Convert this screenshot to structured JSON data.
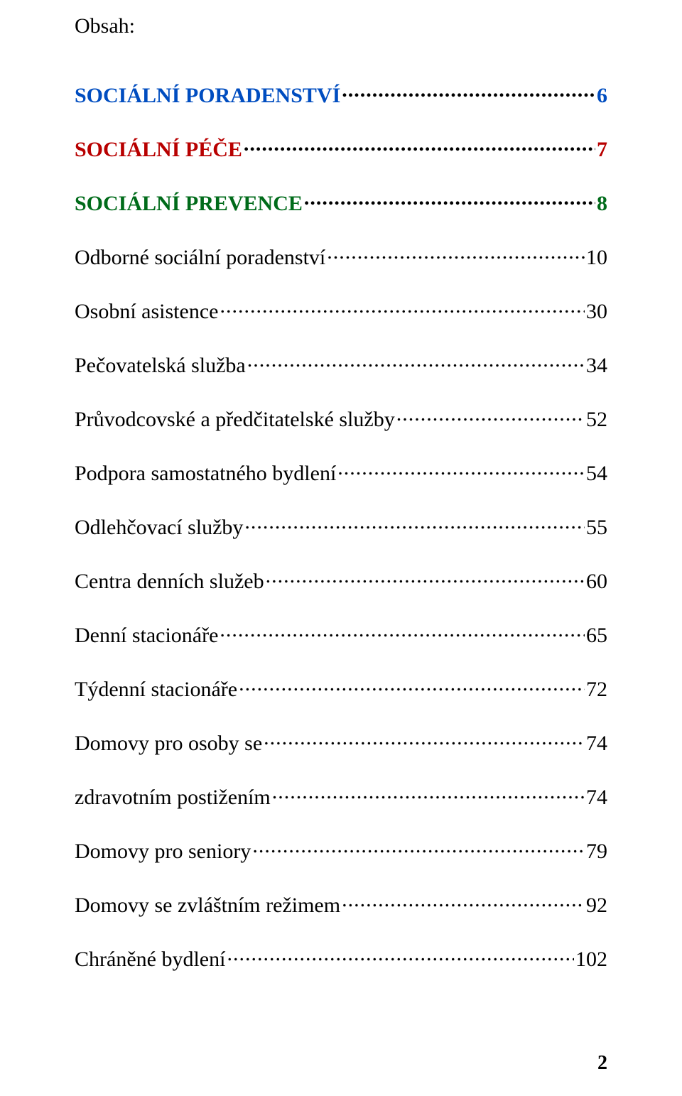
{
  "heading": "Obsah:",
  "colors": {
    "section_blue": "#004dc0",
    "section_red": "#b80000",
    "section_green": "#006b1a",
    "body_text": "#000000",
    "leader": "#000000",
    "background": "#ffffff"
  },
  "fonts": {
    "family": "Times New Roman",
    "body_size_pt": 22,
    "heading_size_pt": 22
  },
  "toc": [
    {
      "label": "SOCIÁLNÍ PORADENSTVÍ",
      "page": "6",
      "section": true,
      "color": "#004dc0"
    },
    {
      "label": "SOCIÁLNÍ PÉČE",
      "page": "7",
      "section": true,
      "color": "#b80000"
    },
    {
      "label": "SOCIÁLNÍ PREVENCE",
      "page": "8",
      "section": true,
      "color": "#006b1a"
    },
    {
      "label": "Odborné sociální poradenství",
      "page": "10",
      "section": false,
      "color": "#000000"
    },
    {
      "label": "Osobní asistence",
      "page": "30",
      "section": false,
      "color": "#000000"
    },
    {
      "label": "Pečovatelská služba",
      "page": "34",
      "section": false,
      "color": "#000000"
    },
    {
      "label": "Průvodcovské  a předčitatelské služby",
      "page": "52",
      "section": false,
      "color": "#000000"
    },
    {
      "label": "Podpora samostatného bydlení",
      "page": "54",
      "section": false,
      "color": "#000000"
    },
    {
      "label": "Odlehčovací služby",
      "page": "55",
      "section": false,
      "color": "#000000"
    },
    {
      "label": "Centra denních služeb",
      "page": "60",
      "section": false,
      "color": "#000000"
    },
    {
      "label": "Denní stacionáře",
      "page": "65",
      "section": false,
      "color": "#000000"
    },
    {
      "label": "Týdenní stacionáře",
      "page": "72",
      "section": false,
      "color": "#000000"
    },
    {
      "label": "Domovy pro osoby se",
      "page": "74",
      "section": false,
      "color": "#000000"
    },
    {
      "label": "zdravotním postižením",
      "page": "74",
      "section": false,
      "color": "#000000"
    },
    {
      "label": "Domovy pro seniory",
      "page": "79",
      "section": false,
      "color": "#000000"
    },
    {
      "label": "Domovy se zvláštním režimem",
      "page": "92",
      "section": false,
      "color": "#000000"
    },
    {
      "label": "Chráněné bydlení",
      "page": "102",
      "section": false,
      "color": "#000000"
    }
  ],
  "leader_char": ".",
  "page_number": "2"
}
